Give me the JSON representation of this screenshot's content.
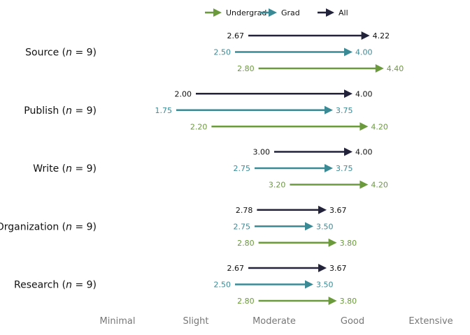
{
  "chart_data": {
    "type": "arrow",
    "xlim": [
      1,
      5
    ],
    "x_ticks": [
      {
        "value": 1,
        "label": "Minimal"
      },
      {
        "value": 2,
        "label": "Slight"
      },
      {
        "value": 3,
        "label": "Moderate"
      },
      {
        "value": 4,
        "label": "Good"
      },
      {
        "value": 5,
        "label": "Extensive"
      }
    ],
    "legend_position": "top",
    "grid": false,
    "series": [
      {
        "name": "Undergrad",
        "color": "#6a9a3c"
      },
      {
        "name": "Grad",
        "color": "#3a8a96"
      },
      {
        "name": "All",
        "color": "#22223b"
      }
    ],
    "categories": [
      {
        "label_pre": "Source (",
        "label_n": "n",
        "label_post": " = 9)",
        "rows": [
          {
            "series": "All",
            "from": 2.67,
            "to": 4.22,
            "from_label": "2.67",
            "to_label": "4.22"
          },
          {
            "series": "Grad",
            "from": 2.5,
            "to": 4.0,
            "from_label": "2.50",
            "to_label": "4.00"
          },
          {
            "series": "Undergrad",
            "from": 2.8,
            "to": 4.4,
            "from_label": "2.80",
            "to_label": "4.40"
          }
        ]
      },
      {
        "label_pre": "Publish (",
        "label_n": "n",
        "label_post": " = 9)",
        "rows": [
          {
            "series": "All",
            "from": 2.0,
            "to": 4.0,
            "from_label": "2.00",
            "to_label": "4.00"
          },
          {
            "series": "Grad",
            "from": 1.75,
            "to": 3.75,
            "from_label": "1.75",
            "to_label": "3.75"
          },
          {
            "series": "Undergrad",
            "from": 2.2,
            "to": 4.2,
            "from_label": "2.20",
            "to_label": "4.20"
          }
        ]
      },
      {
        "label_pre": "Write (",
        "label_n": "n",
        "label_post": " = 9)",
        "rows": [
          {
            "series": "All",
            "from": 3.0,
            "to": 4.0,
            "from_label": "3.00",
            "to_label": "4.00"
          },
          {
            "series": "Grad",
            "from": 2.75,
            "to": 3.75,
            "from_label": "2.75",
            "to_label": "3.75"
          },
          {
            "series": "Undergrad",
            "from": 3.2,
            "to": 4.2,
            "from_label": "3.20",
            "to_label": "4.20"
          }
        ]
      },
      {
        "label_pre": "Organization (",
        "label_n": "n",
        "label_post": " = 9)",
        "rows": [
          {
            "series": "All",
            "from": 2.78,
            "to": 3.67,
            "from_label": "2.78",
            "to_label": "3.67"
          },
          {
            "series": "Grad",
            "from": 2.75,
            "to": 3.5,
            "from_label": "2.75",
            "to_label": "3.50"
          },
          {
            "series": "Undergrad",
            "from": 2.8,
            "to": 3.8,
            "from_label": "2.80",
            "to_label": "3.80"
          }
        ]
      },
      {
        "label_pre": "Research (",
        "label_n": "n",
        "label_post": " = 9)",
        "rows": [
          {
            "series": "All",
            "from": 2.67,
            "to": 3.67,
            "from_label": "2.67",
            "to_label": "3.67"
          },
          {
            "series": "Grad",
            "from": 2.5,
            "to": 3.5,
            "from_label": "2.50",
            "to_label": "3.50"
          },
          {
            "series": "Undergrad",
            "from": 2.8,
            "to": 3.8,
            "from_label": "2.80",
            "to_label": "3.80"
          }
        ]
      }
    ]
  }
}
